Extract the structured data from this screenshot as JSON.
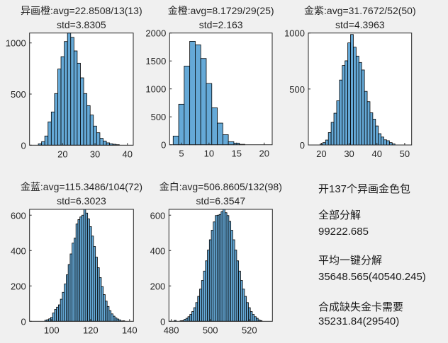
{
  "chart_data": [
    {
      "type": "bar",
      "title": [
        "异画橙:avg=22.8508/13(13)",
        "std=3.8305"
      ],
      "xlim": [
        9.8,
        41.8
      ],
      "ylim": [
        0,
        1097
      ],
      "xticks": [
        20,
        30,
        40
      ],
      "yticks": [
        0,
        500,
        1000
      ],
      "bin_width": 1,
      "x": [
        13,
        14,
        15,
        16,
        17,
        18,
        19,
        20,
        21,
        22,
        23,
        24,
        25,
        26,
        27,
        28,
        29,
        30,
        31,
        32,
        33,
        34,
        35,
        36,
        37
      ],
      "values": [
        14,
        35,
        90,
        228,
        325,
        505,
        745,
        866,
        1014,
        1097,
        1055,
        922,
        802,
        659,
        505,
        387,
        295,
        187,
        122,
        67,
        41,
        23,
        14,
        9,
        5
      ]
    },
    {
      "type": "bar",
      "title": [
        "金橙:avg=8.1729/29(25)",
        "std=2.163"
      ],
      "xlim": [
        2.86,
        21.45
      ],
      "ylim": [
        0,
        2000
      ],
      "xticks": [
        5,
        10,
        15,
        20
      ],
      "yticks": [
        0,
        500,
        1000,
        1500,
        2000
      ],
      "bin_width": 1,
      "x": [
        4,
        5,
        6,
        7,
        8,
        9,
        10,
        11,
        12,
        13,
        14,
        15,
        16
      ],
      "values": [
        156,
        726,
        1409,
        1852,
        1789,
        1544,
        1097,
        662,
        388,
        181,
        55,
        30,
        8
      ]
    },
    {
      "type": "bar",
      "title": [
        "金紫:avg=31.7672/52(50)",
        "std=4.3963"
      ],
      "xlim": [
        15.3,
        52.5
      ],
      "ylim": [
        0,
        1000
      ],
      "xticks": [
        20,
        30,
        40,
        50
      ],
      "yticks": [
        0,
        500,
        1000
      ],
      "bin_width": 1,
      "x": [
        20,
        21,
        22,
        23,
        24,
        25,
        26,
        27,
        28,
        29,
        30,
        31,
        32,
        33,
        34,
        35,
        36,
        37,
        38,
        39,
        40,
        41,
        42,
        43,
        44,
        45,
        46
      ],
      "values": [
        8,
        21,
        44,
        111,
        202,
        284,
        395,
        580,
        710,
        752,
        912,
        987,
        874,
        794,
        737,
        670,
        479,
        387,
        288,
        231,
        170,
        101,
        71,
        46,
        38,
        21,
        10
      ]
    },
    {
      "type": "bar",
      "title": [
        "金蓝:avg=115.3486/104(72)",
        "std=6.3023"
      ],
      "xlim": [
        88.7,
        142
      ],
      "ylim": [
        0,
        633
      ],
      "xticks": [
        100,
        120,
        140
      ],
      "yticks": [
        0,
        200,
        400,
        600
      ],
      "bin_width": 1,
      "x": [
        97,
        98,
        99,
        100,
        101,
        102,
        103,
        104,
        105,
        106,
        107,
        108,
        109,
        110,
        111,
        112,
        113,
        114,
        115,
        116,
        117,
        118,
        119,
        120,
        121,
        122,
        123,
        124,
        125,
        126,
        127,
        128,
        129,
        130,
        131,
        132,
        133,
        134,
        135,
        136,
        137
      ],
      "values": [
        6,
        9,
        14,
        22,
        47,
        67,
        80,
        93,
        125,
        164,
        211,
        263,
        321,
        381,
        442,
        470,
        550,
        575,
        590,
        600,
        633,
        612,
        579,
        535,
        482,
        423,
        363,
        303,
        247,
        196,
        151,
        114,
        84,
        60,
        42,
        29,
        19,
        13,
        8,
        2,
        3
      ]
    },
    {
      "type": "bar",
      "title": [
        "金白:avg=506.8605/132(98)",
        "std=6.3547"
      ],
      "xlim": [
        478.8,
        531.8
      ],
      "ylim": [
        0,
        633
      ],
      "xticks": [
        480,
        500,
        520
      ],
      "yticks": [
        0,
        200,
        400,
        600
      ],
      "bin_width": 1,
      "x": [
        482,
        483,
        484,
        485,
        486,
        487,
        488,
        489,
        490,
        491,
        492,
        493,
        494,
        495,
        496,
        497,
        498,
        499,
        500,
        501,
        502,
        503,
        504,
        505,
        506,
        507,
        508,
        509,
        510,
        511,
        512,
        513,
        514,
        515,
        516,
        517,
        518,
        519,
        520,
        521,
        522,
        523,
        524,
        525,
        526
      ],
      "values": [
        5,
        0,
        0,
        3,
        4,
        11,
        17,
        26,
        39,
        55,
        77,
        106,
        141,
        182,
        231,
        284,
        342,
        403,
        461,
        515,
        562,
        598,
        600,
        604,
        620,
        633,
        614,
        598,
        565,
        515,
        461,
        403,
        342,
        284,
        231,
        182,
        141,
        106,
        77,
        55,
        39,
        26,
        17,
        8,
        4
      ]
    }
  ],
  "info": {
    "heading": "开137个异画金色包",
    "items": [
      {
        "label": "全部分解",
        "value": " 99222.685"
      },
      {
        "label": "平均一键分解",
        "value": " 35648.565(40540.245)"
      },
      {
        "label": "合成缺失金卡需要",
        "value": " 35231.84(29540)"
      }
    ]
  },
  "colors": {
    "bar": "#65a9d7",
    "edge": "#000000",
    "axes_bg": "#ffffff",
    "figure_bg": "#f0f0f0"
  }
}
